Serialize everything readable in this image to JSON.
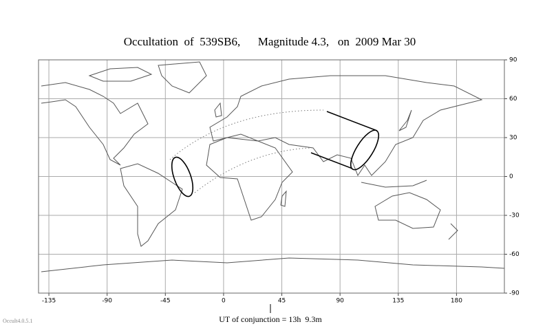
{
  "title": "Occultation  of  539SB6,      Magnitude 4.3,   on  2009 Mar 30",
  "map": {
    "xlim": [
      -143,
      217
    ],
    "ylim": [
      -90,
      90
    ],
    "xticks": [
      -135,
      -90,
      -45,
      0,
      45,
      90,
      135,
      180
    ],
    "yticks": [
      90,
      60,
      30,
      0,
      -30,
      -60,
      -90
    ]
  },
  "conjunction": "UT of conjunction = 13h  9.3m",
  "version": "Occult4.0.5.1"
}
